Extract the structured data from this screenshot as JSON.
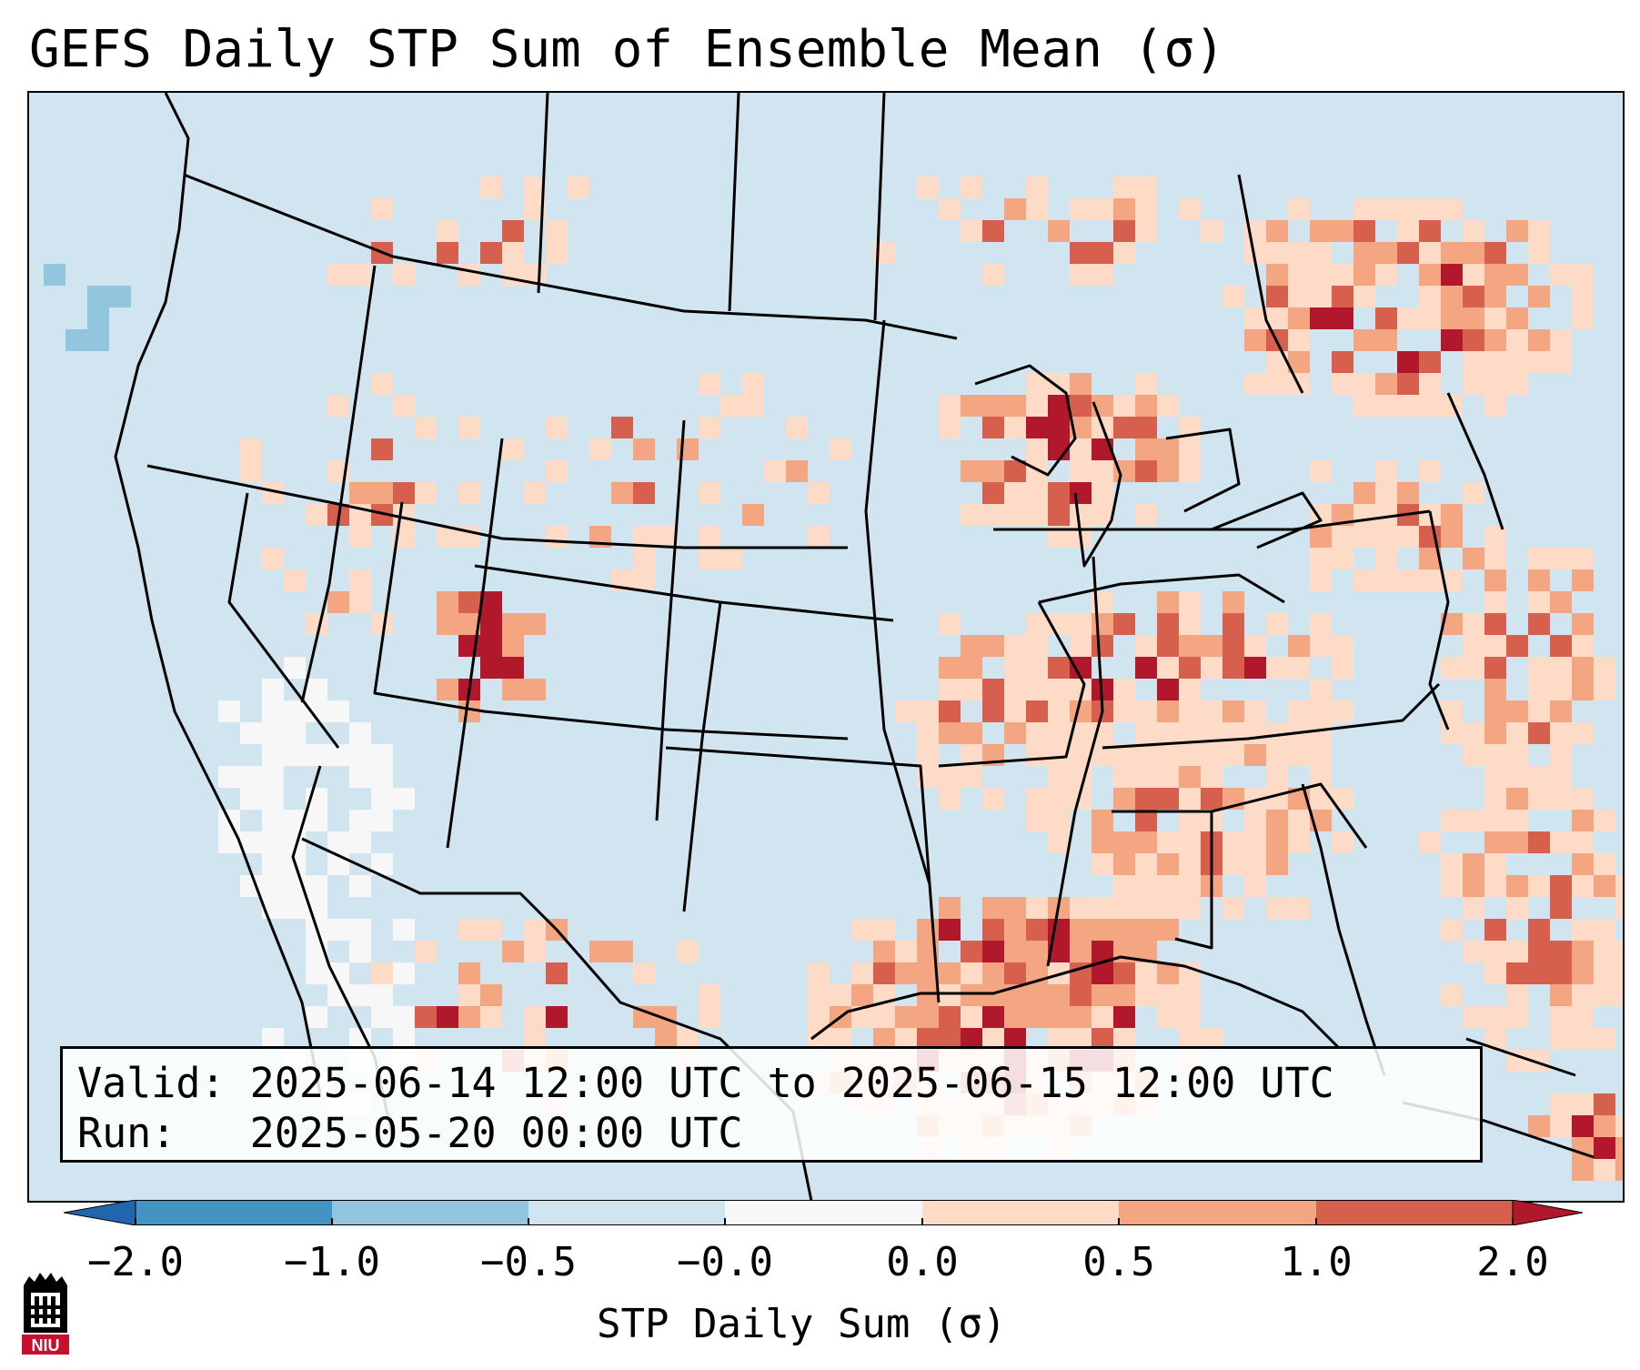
{
  "title": "GEFS Daily STP Sum of Ensemble Mean (σ)",
  "map": {
    "type": "gridded choropleth over North America",
    "variable": "STP daily sum anomaly (σ)",
    "background_color": "#d1e5f0",
    "regions_of_high_values": [
      "Gulf of Mexico coast",
      "Ohio Valley",
      "Southeast US",
      "Great Lakes",
      "Northeast US",
      "Western Atlantic",
      "Colorado/Utah border"
    ],
    "regions_of_low_values": [
      "Southwest US / Baja California",
      "Pacific Northwest coastal waters"
    ]
  },
  "info": {
    "valid_label": "Valid:",
    "valid_value": "2025-06-14 12:00 UTC to 2025-06-15 12:00 UTC",
    "run_label": "Run:",
    "run_value": "2025-05-20 00:00 UTC"
  },
  "colorbar": {
    "label": "STP Daily Sum (σ)",
    "ticks": [
      "−2.0",
      "−1.0",
      "−0.5",
      "−0.0",
      "0.0",
      "0.5",
      "1.0",
      "2.0"
    ],
    "bin_colors": [
      "#2166ac",
      "#4393c3",
      "#92c5de",
      "#d1e5f0",
      "#f7f7f7",
      "#fddbc7",
      "#f4a582",
      "#d6604d",
      "#b2182b"
    ],
    "extend": "both"
  },
  "logo": {
    "text": "NIU",
    "colors": {
      "primary": "#c8102e",
      "secondary": "#000000"
    }
  }
}
